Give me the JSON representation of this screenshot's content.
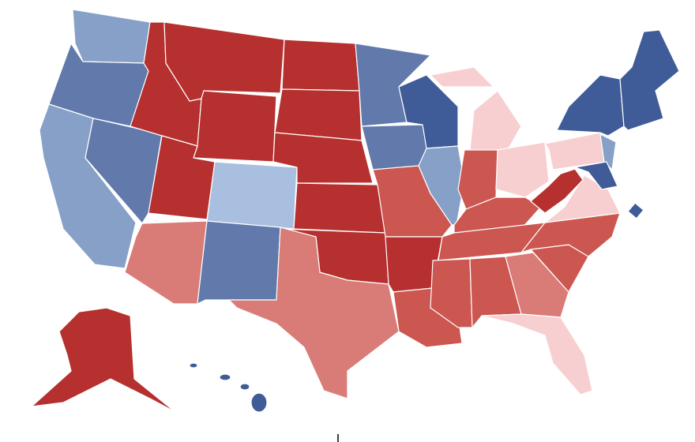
{
  "map": {
    "colors": [
      "#b5302e",
      "#cc5650",
      "#d97b76",
      "#f8cfd0",
      "#a8bfe0",
      "#86a0c8",
      "#6179ab",
      "#3f5c98"
    ]
  }
}
